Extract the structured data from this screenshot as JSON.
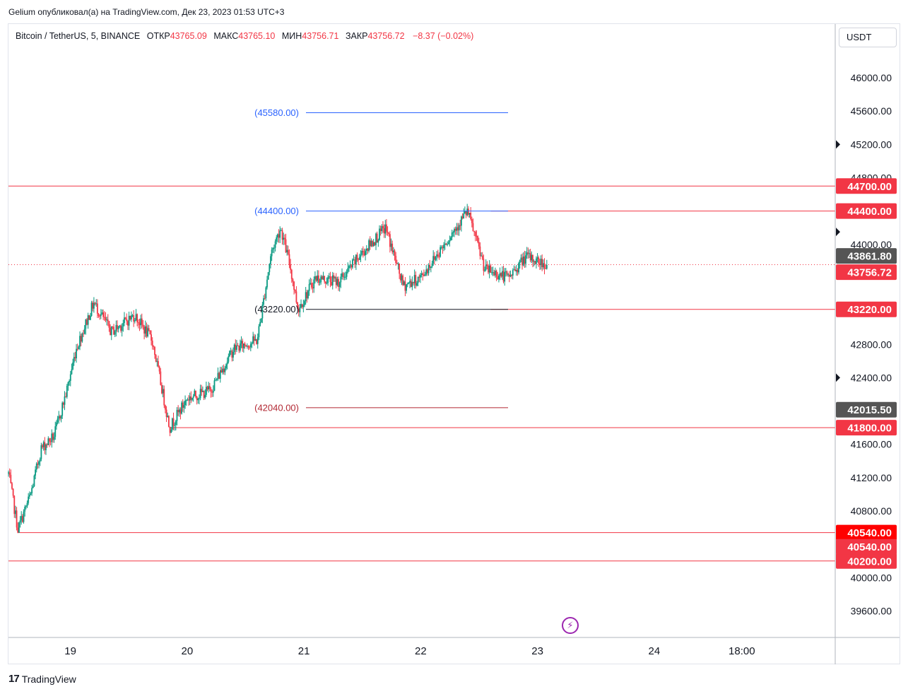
{
  "header": {
    "text": "Gelium опубликовал(а) на TradingView.com, Дек 23, 2023 01:53 UTC+3"
  },
  "legend": {
    "symbol": "Bitcoin / TetherUS, 5, BINANCE",
    "open_label": "ОТКР",
    "open": "43765.09",
    "high_label": "МАКС",
    "high": "43765.10",
    "low_label": "МИН",
    "low": "43756.71",
    "close_label": "ЗАКР",
    "close": "43756.72",
    "change": "−8.37 (−0.02%)"
  },
  "currency": "USDT",
  "brand": {
    "logo": "17",
    "name": "TradingView"
  },
  "icons": {
    "lightning": "lightning-icon",
    "logo": "tradingview-logo-icon"
  },
  "colors": {
    "up": "#089981",
    "down": "#f23645",
    "level_red": "#f23645",
    "level_blue": "#2962ff",
    "price_tag_dark": "#555555"
  },
  "chart_data": {
    "type": "candlestick",
    "y_range": [
      39300,
      46500
    ],
    "y_ticks": [
      "39600.00",
      "40000.00",
      "40800.00",
      "41200.00",
      "41600.00",
      "42400.00",
      "42800.00",
      "44000.00",
      "44800.00",
      "45200.00",
      "45600.00",
      "46000.00"
    ],
    "x_ticks": [
      "19",
      "20",
      "21",
      "22",
      "23",
      "24",
      "18:00"
    ],
    "x_tick_days": [
      19,
      20,
      21,
      22,
      23,
      24,
      24.75
    ],
    "x_range_days": [
      18.47,
      25.55
    ],
    "price_series_key_points": [
      {
        "t": 18.47,
        "p": 41250
      },
      {
        "t": 18.55,
        "p": 40580
      },
      {
        "t": 18.66,
        "p": 41000
      },
      {
        "t": 18.75,
        "p": 41550
      },
      {
        "t": 18.86,
        "p": 41700
      },
      {
        "t": 18.97,
        "p": 42250
      },
      {
        "t": 19.05,
        "p": 42750
      },
      {
        "t": 19.2,
        "p": 43300
      },
      {
        "t": 19.35,
        "p": 42950
      },
      {
        "t": 19.55,
        "p": 43150
      },
      {
        "t": 19.7,
        "p": 42850
      },
      {
        "t": 19.85,
        "p": 41800
      },
      {
        "t": 20.0,
        "p": 42150
      },
      {
        "t": 20.2,
        "p": 42250
      },
      {
        "t": 20.4,
        "p": 42750
      },
      {
        "t": 20.6,
        "p": 42850
      },
      {
        "t": 20.72,
        "p": 43900
      },
      {
        "t": 20.8,
        "p": 44200
      },
      {
        "t": 20.88,
        "p": 43750
      },
      {
        "t": 20.95,
        "p": 43220
      },
      {
        "t": 21.1,
        "p": 43600
      },
      {
        "t": 21.3,
        "p": 43550
      },
      {
        "t": 21.5,
        "p": 43900
      },
      {
        "t": 21.7,
        "p": 44200
      },
      {
        "t": 21.85,
        "p": 43500
      },
      {
        "t": 22.0,
        "p": 43600
      },
      {
        "t": 22.2,
        "p": 44000
      },
      {
        "t": 22.4,
        "p": 44400
      },
      {
        "t": 22.55,
        "p": 43700
      },
      {
        "t": 22.75,
        "p": 43600
      },
      {
        "t": 22.9,
        "p": 43850
      },
      {
        "t": 23.0,
        "p": 43800
      },
      {
        "t": 23.08,
        "p": 43756.72
      }
    ],
    "levels": [
      {
        "price": 44700,
        "label": "44700.00",
        "color": "red",
        "t_start": 18.47,
        "t_end": 25.55,
        "axis_tag": true
      },
      {
        "price": 44400,
        "label": "44400.00",
        "color": "red",
        "t_start": 22.6,
        "t_end": 25.55,
        "axis_tag": true
      },
      {
        "price": 43220,
        "label": "43220.00",
        "color": "red",
        "t_start": 22.6,
        "t_end": 25.55,
        "axis_tag": true
      },
      {
        "price": 41800,
        "label": "41800.00",
        "color": "red",
        "t_start": 19.85,
        "t_end": 25.55,
        "axis_tag": true
      },
      {
        "price": 40540,
        "label": "40540.00",
        "color": "red",
        "t_start": 18.55,
        "t_end": 25.55,
        "axis_tag": true
      },
      {
        "price": 40200,
        "label": "40200.00",
        "color": "red",
        "t_start": 18.47,
        "t_end": 25.55,
        "axis_tag": true
      }
    ],
    "range_lines": [
      {
        "price": 45580,
        "label": "(45580.00)",
        "color": "blue",
        "t_start": 21.3,
        "t_end": 22.6
      },
      {
        "price": 44400,
        "label": "(44400.00)",
        "color": "blue",
        "t_start": 21.3,
        "t_end": 22.6
      },
      {
        "price": 43220,
        "label": "(43220.00)",
        "color": "black",
        "t_start": 21.3,
        "t_end": 22.6
      },
      {
        "price": 42040,
        "label": "(42040.00)",
        "color": "darkred",
        "t_start": 21.3,
        "t_end": 22.6
      }
    ],
    "current_price": {
      "price": 43756.72,
      "label": "43756.72"
    },
    "axis_tags_extra": [
      {
        "price": 43861.8,
        "label": "43861.80",
        "style": "dark"
      },
      {
        "price": 42015.5,
        "label": "42015.50",
        "style": "dark"
      },
      {
        "price": 40540,
        "label": "40540.00",
        "style": "red-light"
      }
    ],
    "axis_markers": [
      45200,
      44400,
      44150,
      42400
    ]
  }
}
